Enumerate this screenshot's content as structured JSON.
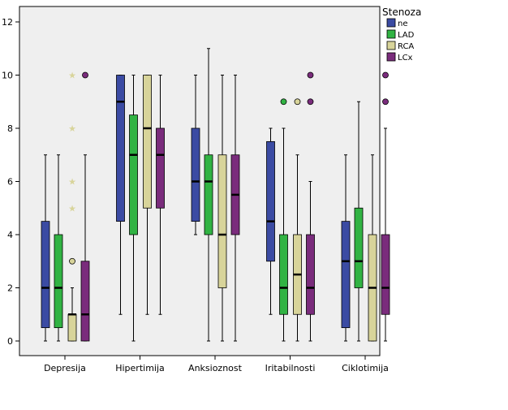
{
  "chart_data": {
    "type": "boxplot",
    "title": "",
    "xlabel": "",
    "ylabel": "",
    "ylim": [
      0,
      12
    ],
    "yticks": [
      0,
      2,
      4,
      6,
      8,
      10,
      12
    ],
    "grid": false,
    "categories": [
      "Depresija",
      "Hipertimija",
      "Anksioznost",
      "Iritabilnosti",
      "Ciklotimija"
    ],
    "legend": {
      "title": "Stenoza",
      "placement": "outside-top-right",
      "entries": [
        {
          "name": "ne",
          "color": "#3B4BA3"
        },
        {
          "name": "LAD",
          "color": "#31B343"
        },
        {
          "name": "RCA",
          "color": "#D8D49A"
        },
        {
          "name": "LCx",
          "color": "#7A2C7C"
        }
      ]
    },
    "series": [
      {
        "name": "ne",
        "color": "#3B4BA3",
        "boxes": [
          {
            "whisker_low": 0,
            "q1": 0.5,
            "median": 2,
            "q3": 4.5,
            "whisker_high": 7,
            "outliers": [],
            "extremes": []
          },
          {
            "whisker_low": 1,
            "q1": 4.5,
            "median": 9,
            "q3": 10,
            "whisker_high": 10,
            "outliers": [],
            "extremes": []
          },
          {
            "whisker_low": 4,
            "q1": 4.5,
            "median": 6,
            "q3": 8,
            "whisker_high": 10,
            "outliers": [],
            "extremes": []
          },
          {
            "whisker_low": 1,
            "q1": 3,
            "median": 4.5,
            "q3": 7.5,
            "whisker_high": 8,
            "outliers": [],
            "extremes": []
          },
          {
            "whisker_low": 0,
            "q1": 0.5,
            "median": 3,
            "q3": 4.5,
            "whisker_high": 7,
            "outliers": [],
            "extremes": []
          }
        ]
      },
      {
        "name": "LAD",
        "color": "#31B343",
        "boxes": [
          {
            "whisker_low": 0,
            "q1": 0.5,
            "median": 2,
            "q3": 4,
            "whisker_high": 7,
            "outliers": [],
            "extremes": []
          },
          {
            "whisker_low": 0,
            "q1": 4,
            "median": 7,
            "q3": 8.5,
            "whisker_high": 10,
            "outliers": [],
            "extremes": []
          },
          {
            "whisker_low": 0,
            "q1": 4,
            "median": 6,
            "q3": 7,
            "whisker_high": 11,
            "outliers": [],
            "extremes": []
          },
          {
            "whisker_low": 0,
            "q1": 1,
            "median": 2,
            "q3": 4,
            "whisker_high": 8,
            "outliers": [
              9
            ],
            "extremes": []
          },
          {
            "whisker_low": 0,
            "q1": 2,
            "median": 3,
            "q3": 5,
            "whisker_high": 9,
            "outliers": [],
            "extremes": []
          }
        ]
      },
      {
        "name": "RCA",
        "color": "#D8D49A",
        "boxes": [
          {
            "whisker_low": 0,
            "q1": 0,
            "median": 1,
            "q3": 1,
            "whisker_high": 2,
            "outliers": [
              3
            ],
            "extremes": [
              5,
              6,
              8,
              10
            ]
          },
          {
            "whisker_low": 1,
            "q1": 5,
            "median": 8,
            "q3": 10,
            "whisker_high": 10,
            "outliers": [],
            "extremes": []
          },
          {
            "whisker_low": 0,
            "q1": 2,
            "median": 4,
            "q3": 7,
            "whisker_high": 10,
            "outliers": [],
            "extremes": []
          },
          {
            "whisker_low": 0,
            "q1": 1,
            "median": 2.5,
            "q3": 4,
            "whisker_high": 7,
            "outliers": [
              9
            ],
            "extremes": []
          },
          {
            "whisker_low": 0,
            "q1": 0,
            "median": 2,
            "q3": 4,
            "whisker_high": 7,
            "outliers": [],
            "extremes": []
          }
        ]
      },
      {
        "name": "LCx",
        "color": "#7A2C7C",
        "boxes": [
          {
            "whisker_low": 0,
            "q1": 0,
            "median": 1,
            "q3": 3,
            "whisker_high": 7,
            "outliers": [
              10
            ],
            "extremes": []
          },
          {
            "whisker_low": 1,
            "q1": 5,
            "median": 7,
            "q3": 8,
            "whisker_high": 10,
            "outliers": [],
            "extremes": []
          },
          {
            "whisker_low": 0,
            "q1": 4,
            "median": 5.5,
            "q3": 7,
            "whisker_high": 10,
            "outliers": [],
            "extremes": []
          },
          {
            "whisker_low": 0,
            "q1": 1,
            "median": 2,
            "q3": 4,
            "whisker_high": 6,
            "outliers": [
              9,
              10
            ],
            "extremes": []
          },
          {
            "whisker_low": 0,
            "q1": 1,
            "median": 2,
            "q3": 4,
            "whisker_high": 8,
            "outliers": [
              9,
              10
            ],
            "extremes": []
          }
        ]
      }
    ]
  }
}
